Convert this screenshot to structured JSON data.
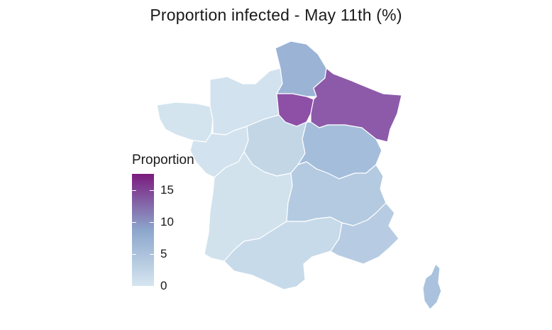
{
  "title": "Proportion infected - May 11th (%)",
  "legend": {
    "title": "Proportion",
    "min": 0,
    "max": 17.5,
    "ticks": [
      "0",
      "5",
      "10",
      "15"
    ],
    "colors": {
      "low": "#d6e6f0",
      "mid": "#8ca6cc",
      "high": "#7b1b7e"
    }
  },
  "regions": [
    {
      "name": "Hauts-de-France",
      "value": 7.3,
      "color": "#9bb4d6"
    },
    {
      "name": "Normandie",
      "value": 1.1,
      "color": "#d2e2ee"
    },
    {
      "name": "Bretagne",
      "value": 0.7,
      "color": "#d3e4ef"
    },
    {
      "name": "Île-de-France",
      "value": 14.3,
      "color": "#8e4fa6"
    },
    {
      "name": "Grand Est",
      "value": 13.6,
      "color": "#8d5aaa"
    },
    {
      "name": "Pays de la Loire",
      "value": 1.1,
      "color": "#d2e2ee"
    },
    {
      "name": "Centre-Val de Loire",
      "value": 2.8,
      "color": "#c2d6e6"
    },
    {
      "name": "Bourgogne-Franche-Comté",
      "value": 6.1,
      "color": "#a4bddb"
    },
    {
      "name": "Nouvelle-Aquitaine",
      "value": 1.2,
      "color": "#d1e2ed"
    },
    {
      "name": "Auvergne-Rhône-Alpes",
      "value": 4.5,
      "color": "#b3cae1"
    },
    {
      "name": "Occitanie",
      "value": 1.8,
      "color": "#c7daea"
    },
    {
      "name": "Provence-Alpes-Côte d'Azur",
      "value": 3.7,
      "color": "#b7cce2"
    },
    {
      "name": "Corse",
      "value": 4.8,
      "color": "#aac2dd"
    }
  ]
}
